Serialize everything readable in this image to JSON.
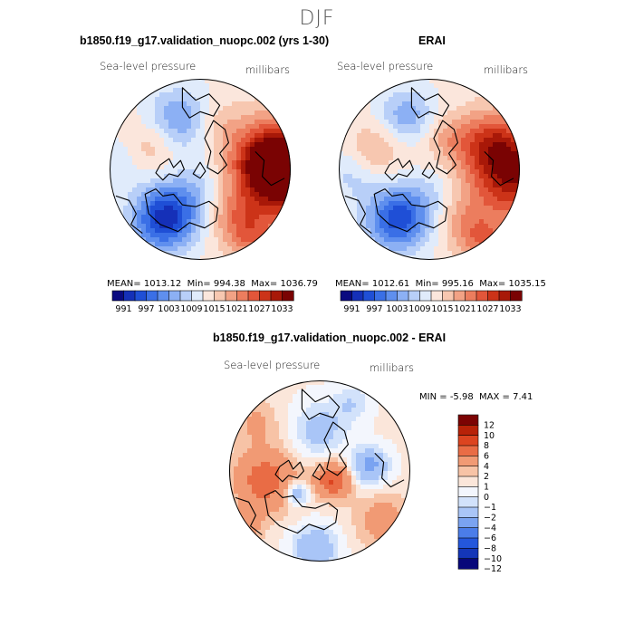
{
  "figure_title": "DJF",
  "panel1": {
    "title": "b1850.f19_g17.validation_nuopc.002 (yrs 1-30)",
    "variable": "Sea-level pressure",
    "units": "millibars",
    "stats": {
      "mean_label": "MEAN=",
      "mean": "1013.12",
      "min_label": "Min=",
      "min": "994.38",
      "max_label": "Max=",
      "max": "1036.79"
    }
  },
  "panel2": {
    "title": "ERAI",
    "variable": "Sea-level pressure",
    "units": "millibars",
    "stats": {
      "mean_label": "MEAN=",
      "mean": "1012.61",
      "min_label": "Min=",
      "min": "995.16",
      "max_label": "Max=",
      "max": "1035.15"
    }
  },
  "panel3": {
    "title": "b1850.f19_g17.validation_nuopc.002 - ERAI",
    "variable": "Sea-level pressure",
    "units": "millibars",
    "stats": {
      "min_label": "MIN =",
      "min": "-5.98",
      "max_label": "MAX =",
      "max": "7.41"
    }
  },
  "colors": {
    "abs_scale": [
      "#0a0a80",
      "#1530b8",
      "#1f4fd6",
      "#3a6fe6",
      "#5f8fee",
      "#8cb0f4",
      "#b8cff8",
      "#e0ebfb",
      "#fbe6dc",
      "#f7c7b0",
      "#f2a285",
      "#ec7d5e",
      "#e2563a",
      "#cc3318",
      "#a81808",
      "#7a0303"
    ],
    "diff_scale": [
      "#08087a",
      "#1436b8",
      "#2457dc",
      "#4b7de9",
      "#7aa3f1",
      "#a9c5f7",
      "#d2e2fb",
      "#f3f6fd",
      "#fbe6da",
      "#f7c3a6",
      "#f19a74",
      "#e96c45",
      "#dc4420",
      "#b82208",
      "#7c0303"
    ]
  },
  "chart_data": [
    {
      "type": "heatmap",
      "title": "b1850.f19_g17.validation_nuopc.002 (yrs 1-30)",
      "projection": "north polar stereographic",
      "variable": "Sea-level pressure",
      "units": "millibars",
      "mean": 1013.12,
      "min": 994.38,
      "max": 1036.79,
      "contour_levels": [
        991,
        994,
        997,
        1000,
        1003,
        1006,
        1009,
        1012,
        1015,
        1018,
        1021,
        1024,
        1027,
        1030,
        1033
      ],
      "colorbar_tick_labels": [
        "991",
        "997",
        "1003",
        "1009",
        "1015",
        "1021",
        "1027",
        "1033"
      ]
    },
    {
      "type": "heatmap",
      "title": "ERAI",
      "projection": "north polar stereographic",
      "variable": "Sea-level pressure",
      "units": "millibars",
      "mean": 1012.61,
      "min": 995.16,
      "max": 1035.15,
      "contour_levels": [
        991,
        994,
        997,
        1000,
        1003,
        1006,
        1009,
        1012,
        1015,
        1018,
        1021,
        1024,
        1027,
        1030,
        1033
      ],
      "colorbar_tick_labels": [
        "991",
        "997",
        "1003",
        "1009",
        "1015",
        "1021",
        "1027",
        "1033"
      ]
    },
    {
      "type": "heatmap",
      "title": "b1850.f19_g17.validation_nuopc.002 - ERAI",
      "projection": "north polar stereographic",
      "variable": "Sea-level pressure",
      "units": "millibars",
      "min": -5.98,
      "max": 7.41,
      "contour_levels": [
        -12,
        -10,
        -8,
        -6,
        -4,
        -2,
        -1,
        0,
        1,
        2,
        4,
        6,
        8,
        10,
        12
      ],
      "colorbar_tick_labels": [
        "12",
        "10",
        "8",
        "6",
        "4",
        "2",
        "1",
        "0",
        "−1",
        "−2",
        "−4",
        "−6",
        "−8",
        "−10",
        "−12"
      ]
    }
  ]
}
